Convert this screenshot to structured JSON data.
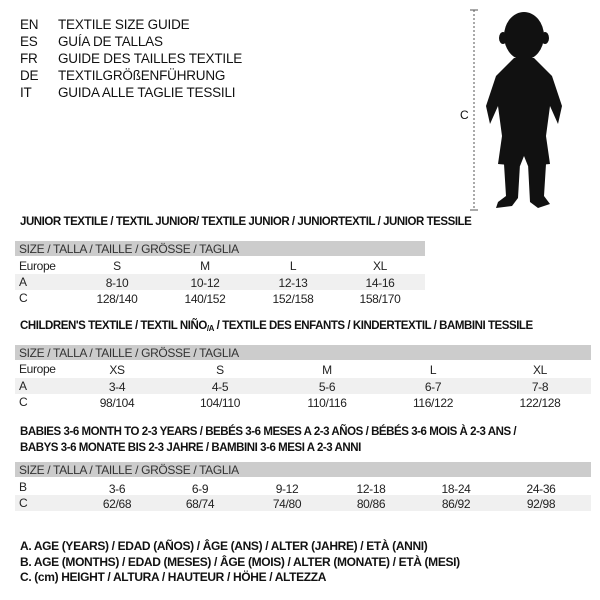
{
  "languages": [
    {
      "code": "EN",
      "text": "TEXTILE SIZE GUIDE"
    },
    {
      "code": "ES",
      "text": "GUÍA DE TALLAS"
    },
    {
      "code": "FR",
      "text": "GUIDE DES TAILLES TEXTILE"
    },
    {
      "code": "DE",
      "text": "TEXTILGRÖßENFÜHRUNG"
    },
    {
      "code": "IT",
      "text": "GUIDA ALLE TAGLIE TESSILI"
    }
  ],
  "figure": {
    "measure_label": "C",
    "icon": "child-silhouette-icon"
  },
  "size_header": "SIZE / TALLA / TAILLE / GRÖSSE / TAGLIA",
  "junior": {
    "title": "JUNIOR TEXTILE / TEXTIL JUNIOR/ TEXTILE JUNIOR / JUNIORTEXTIL / JUNIOR TESSILE",
    "rows": [
      {
        "label": "Europe",
        "values": [
          "S",
          "M",
          "L",
          "XL"
        ]
      },
      {
        "label": "A",
        "values": [
          "8-10",
          "10-12",
          "12-13",
          "14-16"
        ]
      },
      {
        "label": "C",
        "values": [
          "128/140",
          "140/152",
          "152/158",
          "158/170"
        ]
      }
    ]
  },
  "children": {
    "title_a": "CHILDREN'S TEXTILE / TEXTIL NIÑO",
    "title_sub": "/A",
    "title_b": " / TEXTILE DES ENFANTS / KINDERTEXTIL / BAMBINI TESSILE",
    "rows": [
      {
        "label": "Europe",
        "values": [
          "XS",
          "S",
          "M",
          "L",
          "XL"
        ]
      },
      {
        "label": "A",
        "values": [
          "3-4",
          "4-5",
          "5-6",
          "6-7",
          "7-8"
        ]
      },
      {
        "label": "C",
        "values": [
          "98/104",
          "104/110",
          "110/116",
          "116/122",
          "122/128"
        ]
      }
    ]
  },
  "babies": {
    "title_line1": "BABIES 3-6 MONTH TO 2-3 YEARS / BEBÉS 3-6 MESES A 2-3 AÑOS / BÉBÉS 3-6 MOIS À 2-3 ANS /",
    "title_line2": "BABYS 3-6 MONATE BIS 2-3 JAHRE / BAMBINI 3-6 MESI A 2-3 ANNI",
    "rows": [
      {
        "label": "B",
        "values": [
          "3-6",
          "6-9",
          "9-12",
          "12-18",
          "18-24",
          "24-36"
        ]
      },
      {
        "label": "C",
        "values": [
          "62/68",
          "68/74",
          "74/80",
          "80/86",
          "86/92",
          "92/98"
        ]
      }
    ]
  },
  "legend": [
    "A. AGE (YEARS) / EDAD (AÑOS) / ÂGE (ANS) / ALTER (JAHRE) / ETÀ (ANNI)",
    "B. AGE (MONTHS) / EDAD (MESES) / ÂGE (MOIS) / ALTER (MONATE) / ETÀ (MESI)",
    "C. (cm) HEIGHT / ALTURA / HAUTEUR / HÖHE / ALTEZZA"
  ]
}
